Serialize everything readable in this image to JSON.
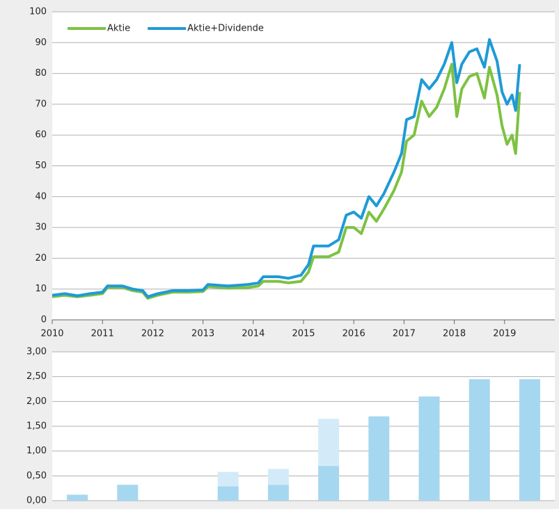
{
  "chart_data": [
    {
      "type": "line",
      "x": [
        2010.0,
        2010.25,
        2010.5,
        2010.75,
        2011.0,
        2011.1,
        2011.4,
        2011.6,
        2011.8,
        2011.9,
        2012.1,
        2012.4,
        2012.7,
        2013.0,
        2013.1,
        2013.5,
        2013.9,
        2014.1,
        2014.2,
        2014.5,
        2014.7,
        2014.95,
        2015.1,
        2015.2,
        2015.5,
        2015.7,
        2015.85,
        2016.0,
        2016.15,
        2016.3,
        2016.45,
        2016.6,
        2016.8,
        2016.95,
        2017.05,
        2017.2,
        2017.35,
        2017.5,
        2017.65,
        2017.8,
        2017.95,
        2018.05,
        2018.15,
        2018.3,
        2018.45,
        2018.6,
        2018.7,
        2018.85,
        2018.95,
        2019.05,
        2019.15,
        2019.22,
        2019.3
      ],
      "series": [
        {
          "name": "Aktie",
          "color": "#7dc242",
          "values": [
            7.5,
            8,
            7.5,
            8,
            8.5,
            10.5,
            10.5,
            9.5,
            9,
            7,
            8,
            9,
            9,
            9.2,
            10.8,
            10.3,
            10.5,
            11,
            12.5,
            12.5,
            12,
            12.5,
            15.5,
            20.5,
            20.5,
            22,
            30,
            30,
            28,
            35,
            32,
            36,
            42,
            48,
            58,
            60,
            71,
            66,
            69,
            75,
            83,
            66,
            75,
            79,
            80,
            72,
            82,
            73,
            63,
            57,
            60,
            54,
            74
          ]
        },
        {
          "name": "Aktie+Dividende",
          "color": "#1f9ad6",
          "values": [
            8,
            8.5,
            7.8,
            8.5,
            9,
            11,
            11,
            10,
            9.5,
            7.5,
            8.5,
            9.5,
            9.5,
            9.7,
            11.5,
            11,
            11.5,
            12,
            14,
            14,
            13.5,
            14.5,
            18,
            24,
            24,
            26,
            34,
            35,
            33,
            40,
            37,
            41,
            48,
            54,
            65,
            66,
            78,
            75,
            78,
            83,
            90,
            77,
            83,
            87,
            88,
            82,
            91,
            84,
            74,
            70,
            73,
            68,
            83
          ]
        }
      ],
      "xlim": [
        2010,
        2020
      ],
      "xticks": [
        2010,
        2011,
        2012,
        2013,
        2014,
        2015,
        2016,
        2017,
        2018,
        2019
      ],
      "ylim": [
        0,
        100
      ],
      "yticks": [
        0,
        10,
        20,
        30,
        40,
        50,
        60,
        70,
        80,
        90,
        100
      ],
      "grid": true,
      "legend": "top-left"
    },
    {
      "type": "bar",
      "categories": [
        null,
        null,
        null,
        null,
        null,
        null,
        null,
        null,
        null,
        null
      ],
      "series": [
        {
          "color": "#a6d7f0",
          "values": [
            0.12,
            0.32,
            0,
            0.29,
            0.32,
            0.7,
            1.7,
            2.1,
            2.45,
            2.45
          ]
        },
        {
          "color": "#d3ebf8",
          "values": [
            0,
            0,
            0,
            0.29,
            0.32,
            0.95,
            0,
            0,
            0,
            0
          ]
        }
      ],
      "ylim": [
        0,
        3
      ],
      "yticks": [
        {
          "value": 0,
          "label": "0,00"
        },
        {
          "value": 0.5,
          "label": "0,50"
        },
        {
          "value": 1,
          "label": "1,00"
        },
        {
          "value": 1.5,
          "label": "1,50"
        },
        {
          "value": 2,
          "label": "2,00"
        },
        {
          "value": 2.5,
          "label": "2,50"
        },
        {
          "value": 3,
          "label": "3,00"
        }
      ],
      "grid": true
    }
  ]
}
